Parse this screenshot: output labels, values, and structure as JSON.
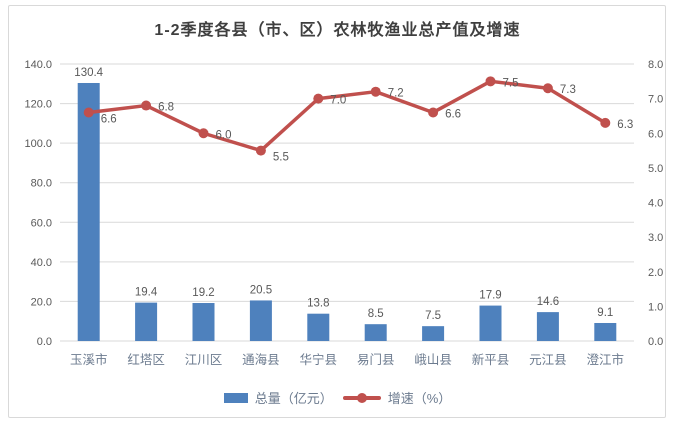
{
  "chart_data": {
    "type": "bar-line-combo",
    "title": "1-2季度各县（市、区）农林牧渔业总产值及增速",
    "categories": [
      "玉溪市",
      "红塔区",
      "江川区",
      "通海县",
      "华宁县",
      "易门县",
      "峨山县",
      "新平县",
      "元江县",
      "澄江市"
    ],
    "series": [
      {
        "name": "总量（亿元）",
        "type": "bar",
        "axis": "left",
        "color": "#4e81bd",
        "values": [
          130.4,
          19.4,
          19.2,
          20.5,
          13.8,
          8.5,
          7.5,
          17.9,
          14.6,
          9.1
        ]
      },
      {
        "name": "增速（%）",
        "type": "line",
        "axis": "right",
        "color": "#c0504d",
        "values": [
          6.6,
          6.8,
          6.0,
          5.5,
          7.0,
          7.2,
          6.6,
          7.5,
          7.3,
          6.3
        ]
      }
    ],
    "left_axis": {
      "min": 0,
      "max": 140,
      "step": 20,
      "tick_labels": [
        "0.0",
        "20.0",
        "40.0",
        "60.0",
        "80.0",
        "100.0",
        "120.0",
        "140.0"
      ]
    },
    "right_axis": {
      "min": 0,
      "max": 8,
      "step": 1,
      "tick_labels": [
        "0.0",
        "1.0",
        "2.0",
        "3.0",
        "4.0",
        "5.0",
        "6.0",
        "7.0",
        "8.0"
      ]
    },
    "grid": true,
    "data_labels": true,
    "legend_position": "bottom"
  },
  "colors": {
    "bar": "#4e81bd",
    "line": "#c0504d",
    "grid": "#d9d9d9",
    "axis_text": "#595959",
    "category_text": "#6c7b8f",
    "data_label_text": "#595959",
    "title_text": "#3f3f3f",
    "frame_border": "#d9d9d9"
  }
}
